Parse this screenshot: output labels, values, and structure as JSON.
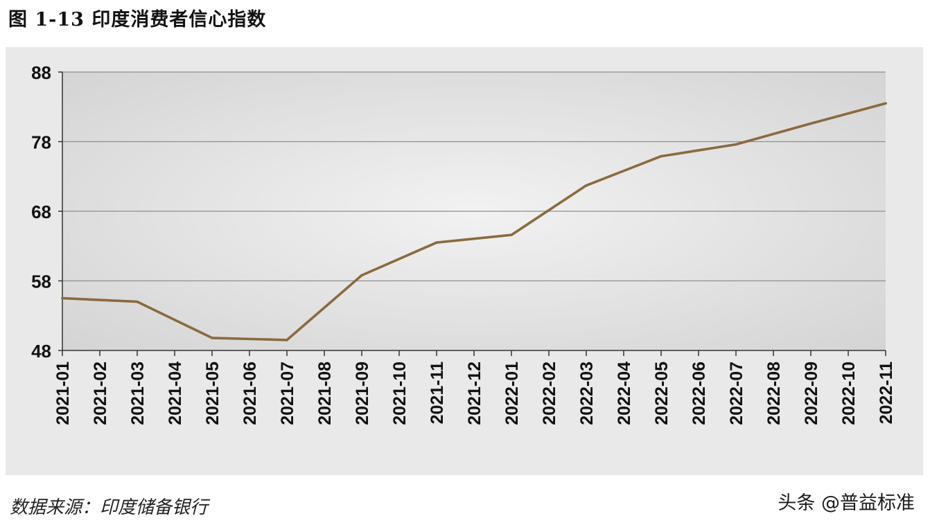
{
  "figure": {
    "title": "图 1-13  印度消费者信心指数",
    "source": "数据来源：印度储备银行",
    "watermark": "头条 @普益标准"
  },
  "chart_data": {
    "type": "line",
    "title": "",
    "xlabel": "",
    "ylabel": "",
    "categories": [
      "2021-01",
      "2021-02",
      "2021-03",
      "2021-04",
      "2021-05",
      "2021-06",
      "2021-07",
      "2021-08",
      "2021-09",
      "2021-10",
      "2021-11",
      "2021-12",
      "2022-01",
      "2022-02",
      "2022-03",
      "2022-04",
      "2022-05",
      "2022-06",
      "2022-07",
      "2022-08",
      "2022-09",
      "2022-10",
      "2022-11"
    ],
    "series": [
      {
        "name": "",
        "color": "#8a6a3e",
        "values": [
          55.5,
          null,
          55.0,
          null,
          49.8,
          null,
          49.5,
          null,
          58.8,
          null,
          63.5,
          null,
          64.6,
          null,
          71.7,
          null,
          75.9,
          null,
          77.6,
          null,
          80.6,
          null,
          83.5
        ]
      }
    ],
    "ylim": [
      48,
      88
    ],
    "yticks": [
      48,
      58,
      68,
      78,
      88
    ],
    "grid": "horizontal",
    "legend": "none",
    "plot_background": "#dcdcdc"
  }
}
